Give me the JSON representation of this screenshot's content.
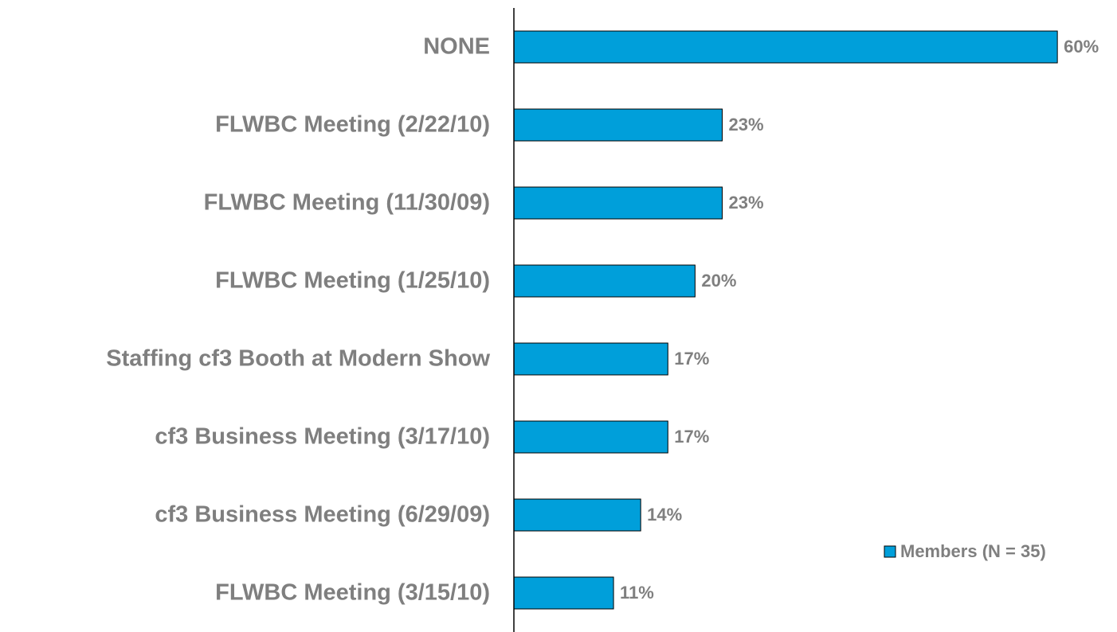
{
  "chart_data": {
    "type": "barh",
    "categories": [
      "NONE",
      "FLWBC Meeting (2/22/10)",
      "FLWBC Meeting (11/30/09)",
      "FLWBC Meeting (1/25/10)",
      "Staffing cf3 Booth at Modern Show",
      "cf3 Business Meeting (3/17/10)",
      "cf3 Business Meeting (6/29/09)",
      "FLWBC Meeting (3/15/10)"
    ],
    "series": [
      {
        "name": "Members (N = 35)",
        "color": "#009fda",
        "values": [
          60,
          23,
          23,
          20,
          17,
          17,
          14,
          11
        ],
        "value_labels": [
          "60%",
          "23%",
          "23%",
          "20%",
          "17%",
          "17%",
          "14%",
          "11%"
        ]
      }
    ],
    "xlim": [
      0,
      65
    ],
    "legend": "lower right"
  }
}
